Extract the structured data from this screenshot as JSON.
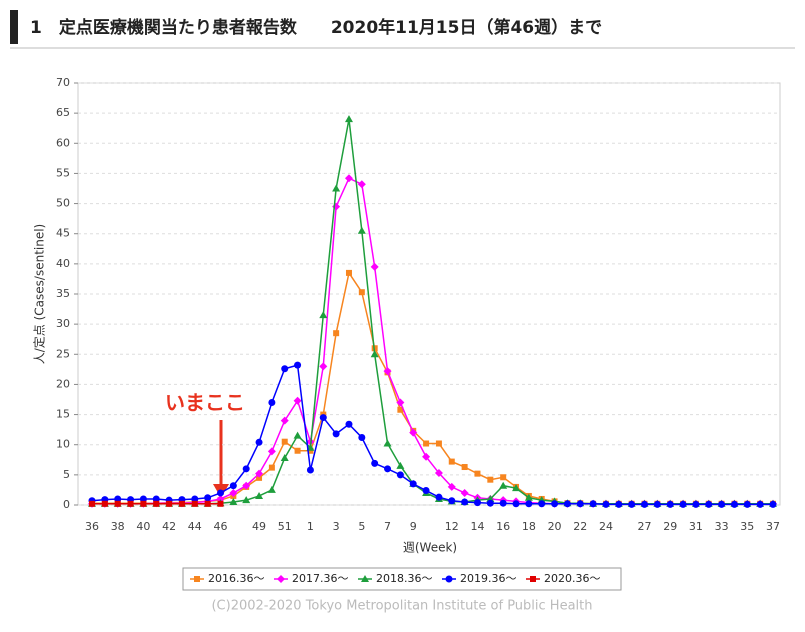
{
  "chart_data": {
    "type": "line",
    "title": "1　定点医療機関当たり患者報告数　　2020年11月15日（第46週）まで",
    "ylabel": "人/定点 (Cases/sentinel)",
    "xlabel": "週(Week)",
    "annotation": "いまここ",
    "credit": "(C)2002-2020 Tokyo Metropolitan Institute of Public Health",
    "categories": [
      "36",
      null,
      "38",
      null,
      "40",
      null,
      "42",
      null,
      "44",
      null,
      "46",
      null,
      null,
      "49",
      null,
      "51",
      null,
      "1",
      null,
      "3",
      null,
      "5",
      null,
      "7",
      null,
      "9",
      null,
      null,
      "12",
      null,
      "14",
      null,
      "16",
      null,
      "18",
      null,
      "20",
      null,
      "22",
      null,
      "24",
      null,
      null,
      "27",
      null,
      "29",
      null,
      "31",
      null,
      "33",
      null,
      "35",
      null,
      "37"
    ],
    "ylim": [
      0,
      70
    ],
    "yticks": [
      0,
      5,
      10,
      15,
      20,
      25,
      30,
      35,
      40,
      45,
      50,
      55,
      60,
      65,
      70
    ],
    "grid": true,
    "legend": "bottom",
    "series": [
      {
        "name": "2016.36～",
        "color": "#f7851f",
        "marker": "square",
        "values": [
          0.3,
          0.3,
          0.3,
          0.3,
          0.3,
          0.3,
          0.4,
          0.4,
          0.5,
          0.6,
          0.8,
          1.5,
          3,
          4.5,
          6.2,
          10.5,
          9,
          9,
          15,
          28.5,
          38.5,
          35.3,
          26,
          22,
          15.8,
          12.3,
          10.2,
          10.2,
          7.2,
          6.3,
          5.2,
          4.2,
          4.6,
          3,
          1.5,
          1,
          0.6,
          0.3,
          0.3,
          0.2,
          0.2,
          0.2,
          0.2,
          0.2,
          0.2,
          0.2,
          0.2,
          0.2,
          0.2,
          0.2,
          0.2,
          0.2,
          0.2,
          0.2
        ]
      },
      {
        "name": "2017.36～",
        "color": "#ff00ff",
        "marker": "diamond",
        "values": [
          0.2,
          0.2,
          0.2,
          0.2,
          0.2,
          0.3,
          0.3,
          0.3,
          0.4,
          0.6,
          1,
          2,
          3.2,
          5.2,
          8.9,
          14,
          17.3,
          10.5,
          23,
          49.5,
          54.2,
          53.2,
          39.5,
          22.2,
          17,
          12,
          8,
          5.3,
          3,
          2,
          1.2,
          1,
          0.8,
          0.6,
          0.4,
          0.3,
          0.2,
          0.2,
          0.2,
          0.2,
          0.2,
          0.2,
          0.2,
          0.2,
          0.2,
          0.2,
          0.2,
          0.2,
          0.2,
          0.2,
          0.2,
          0.2,
          0.2,
          0.2
        ]
      },
      {
        "name": "2018.36～",
        "color": "#1e9e3c",
        "marker": "triangle",
        "values": [
          0.2,
          0.2,
          0.2,
          0.2,
          0.2,
          0.2,
          0.2,
          0.2,
          0.2,
          0.2,
          0.3,
          0.5,
          0.8,
          1.5,
          2.5,
          7.8,
          11.5,
          9.5,
          31.5,
          52.5,
          64,
          45.5,
          25,
          10.2,
          6.5,
          3.5,
          2,
          1,
          0.6,
          0.5,
          0.8,
          1,
          3.2,
          2.8,
          1.2,
          0.8,
          0.6,
          0.3,
          0.3,
          0.2,
          0.2,
          0.2,
          0.2,
          0.2,
          0.2,
          0.2,
          0.2,
          0.2,
          0.2,
          0.2,
          0.2,
          0.2,
          0.2,
          0.2
        ]
      },
      {
        "name": "2019.36～",
        "color": "#0000ff",
        "marker": "circle",
        "values": [
          0.7,
          0.9,
          1,
          0.9,
          1,
          1,
          0.8,
          0.9,
          1,
          1.2,
          2,
          3.2,
          6,
          10.4,
          17,
          22.6,
          23.2,
          5.8,
          14.5,
          11.8,
          13.4,
          11.2,
          6.9,
          6,
          5,
          3.5,
          2.4,
          1.3,
          0.7,
          0.5,
          0.4,
          0.3,
          0.3,
          0.2,
          0.2,
          0.2,
          0.2,
          0.2,
          0.2,
          0.2,
          0.1,
          0.1,
          0.1,
          0.1,
          0.1,
          0.1,
          0.1,
          0.1,
          0.1,
          0.1,
          0.1,
          0.1,
          0.1,
          0.1
        ]
      },
      {
        "name": "2020.36～",
        "color": "#e00000",
        "marker": "square",
        "values": [
          0.2,
          0.2,
          0.2,
          0.2,
          0.2,
          0.2,
          0.2,
          0.2,
          0.2,
          0.2,
          0.2,
          null,
          null,
          null,
          null,
          null,
          null,
          null,
          null,
          null,
          null,
          null,
          null,
          null,
          null,
          null,
          null,
          null,
          null,
          null,
          null,
          null,
          null,
          null,
          null,
          null,
          null,
          null,
          null,
          null,
          null,
          null,
          null,
          null,
          null,
          null,
          null,
          null,
          null,
          null,
          null,
          null,
          null,
          null
        ]
      }
    ]
  }
}
